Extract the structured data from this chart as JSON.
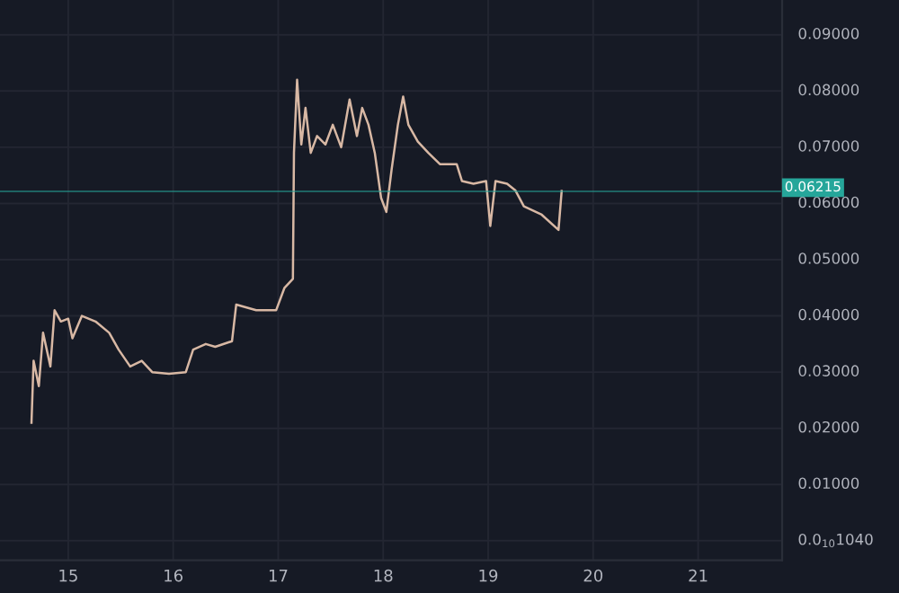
{
  "chart_data": {
    "type": "line",
    "series": [
      {
        "color": "#d8b8a4",
        "x": [
          14.65,
          14.67,
          14.72,
          14.76,
          14.83,
          14.87,
          14.93,
          15.0,
          15.04,
          15.13,
          15.26,
          15.39,
          15.48,
          15.59,
          15.7,
          15.8,
          15.96,
          16.12,
          16.19,
          16.31,
          16.4,
          16.56,
          16.6,
          16.79,
          16.98,
          17.06,
          17.14,
          17.15,
          17.18,
          17.22,
          17.26,
          17.31,
          17.37,
          17.45,
          17.52,
          17.6,
          17.68,
          17.75,
          17.8,
          17.86,
          17.92,
          17.98,
          18.03,
          18.08,
          18.14,
          18.19,
          18.24,
          18.33,
          18.43,
          18.54,
          18.7,
          18.75,
          18.86,
          18.98,
          19.02,
          19.07,
          19.18,
          19.26,
          19.34,
          19.51,
          19.67,
          19.7
        ],
        "values": [
          0.021,
          0.032,
          0.0275,
          0.037,
          0.031,
          0.041,
          0.039,
          0.0395,
          0.036,
          0.04,
          0.039,
          0.037,
          0.034,
          0.031,
          0.032,
          0.03,
          0.0297,
          0.03,
          0.034,
          0.035,
          0.0345,
          0.0355,
          0.042,
          0.041,
          0.041,
          0.045,
          0.0466,
          0.069,
          0.082,
          0.0705,
          0.077,
          0.069,
          0.072,
          0.0705,
          0.074,
          0.07,
          0.0785,
          0.072,
          0.077,
          0.074,
          0.069,
          0.061,
          0.0585,
          0.066,
          0.074,
          0.079,
          0.074,
          0.071,
          0.069,
          0.067,
          0.067,
          0.064,
          0.0635,
          0.064,
          0.056,
          0.064,
          0.0635,
          0.0623,
          0.0595,
          0.058,
          0.0553,
          0.0622
        ]
      }
    ],
    "xlim": [
      14.35,
      21.8
    ],
    "xticks": [
      15,
      16,
      17,
      18,
      19,
      20,
      21
    ],
    "ylim": [
      -0.0035,
      0.0962
    ],
    "yticks": [
      {
        "value": 1.04e-11,
        "label": "0.0$_{10}$1040"
      },
      {
        "value": 0.01,
        "label": "0.01000"
      },
      {
        "value": 0.02,
        "label": "0.02000"
      },
      {
        "value": 0.03,
        "label": "0.03000"
      },
      {
        "value": 0.04,
        "label": "0.04000"
      },
      {
        "value": 0.05,
        "label": "0.05000"
      },
      {
        "value": 0.06,
        "label": "0.06000"
      },
      {
        "value": 0.07,
        "label": "0.07000"
      },
      {
        "value": 0.08,
        "label": "0.08000"
      },
      {
        "value": 0.09,
        "label": "0.09000"
      }
    ],
    "ref_lines": [
      {
        "axis": "y",
        "value": 0.06215,
        "label": "0.06215",
        "color": "#26a69a"
      }
    ],
    "grid": true,
    "line_style": "solid"
  }
}
